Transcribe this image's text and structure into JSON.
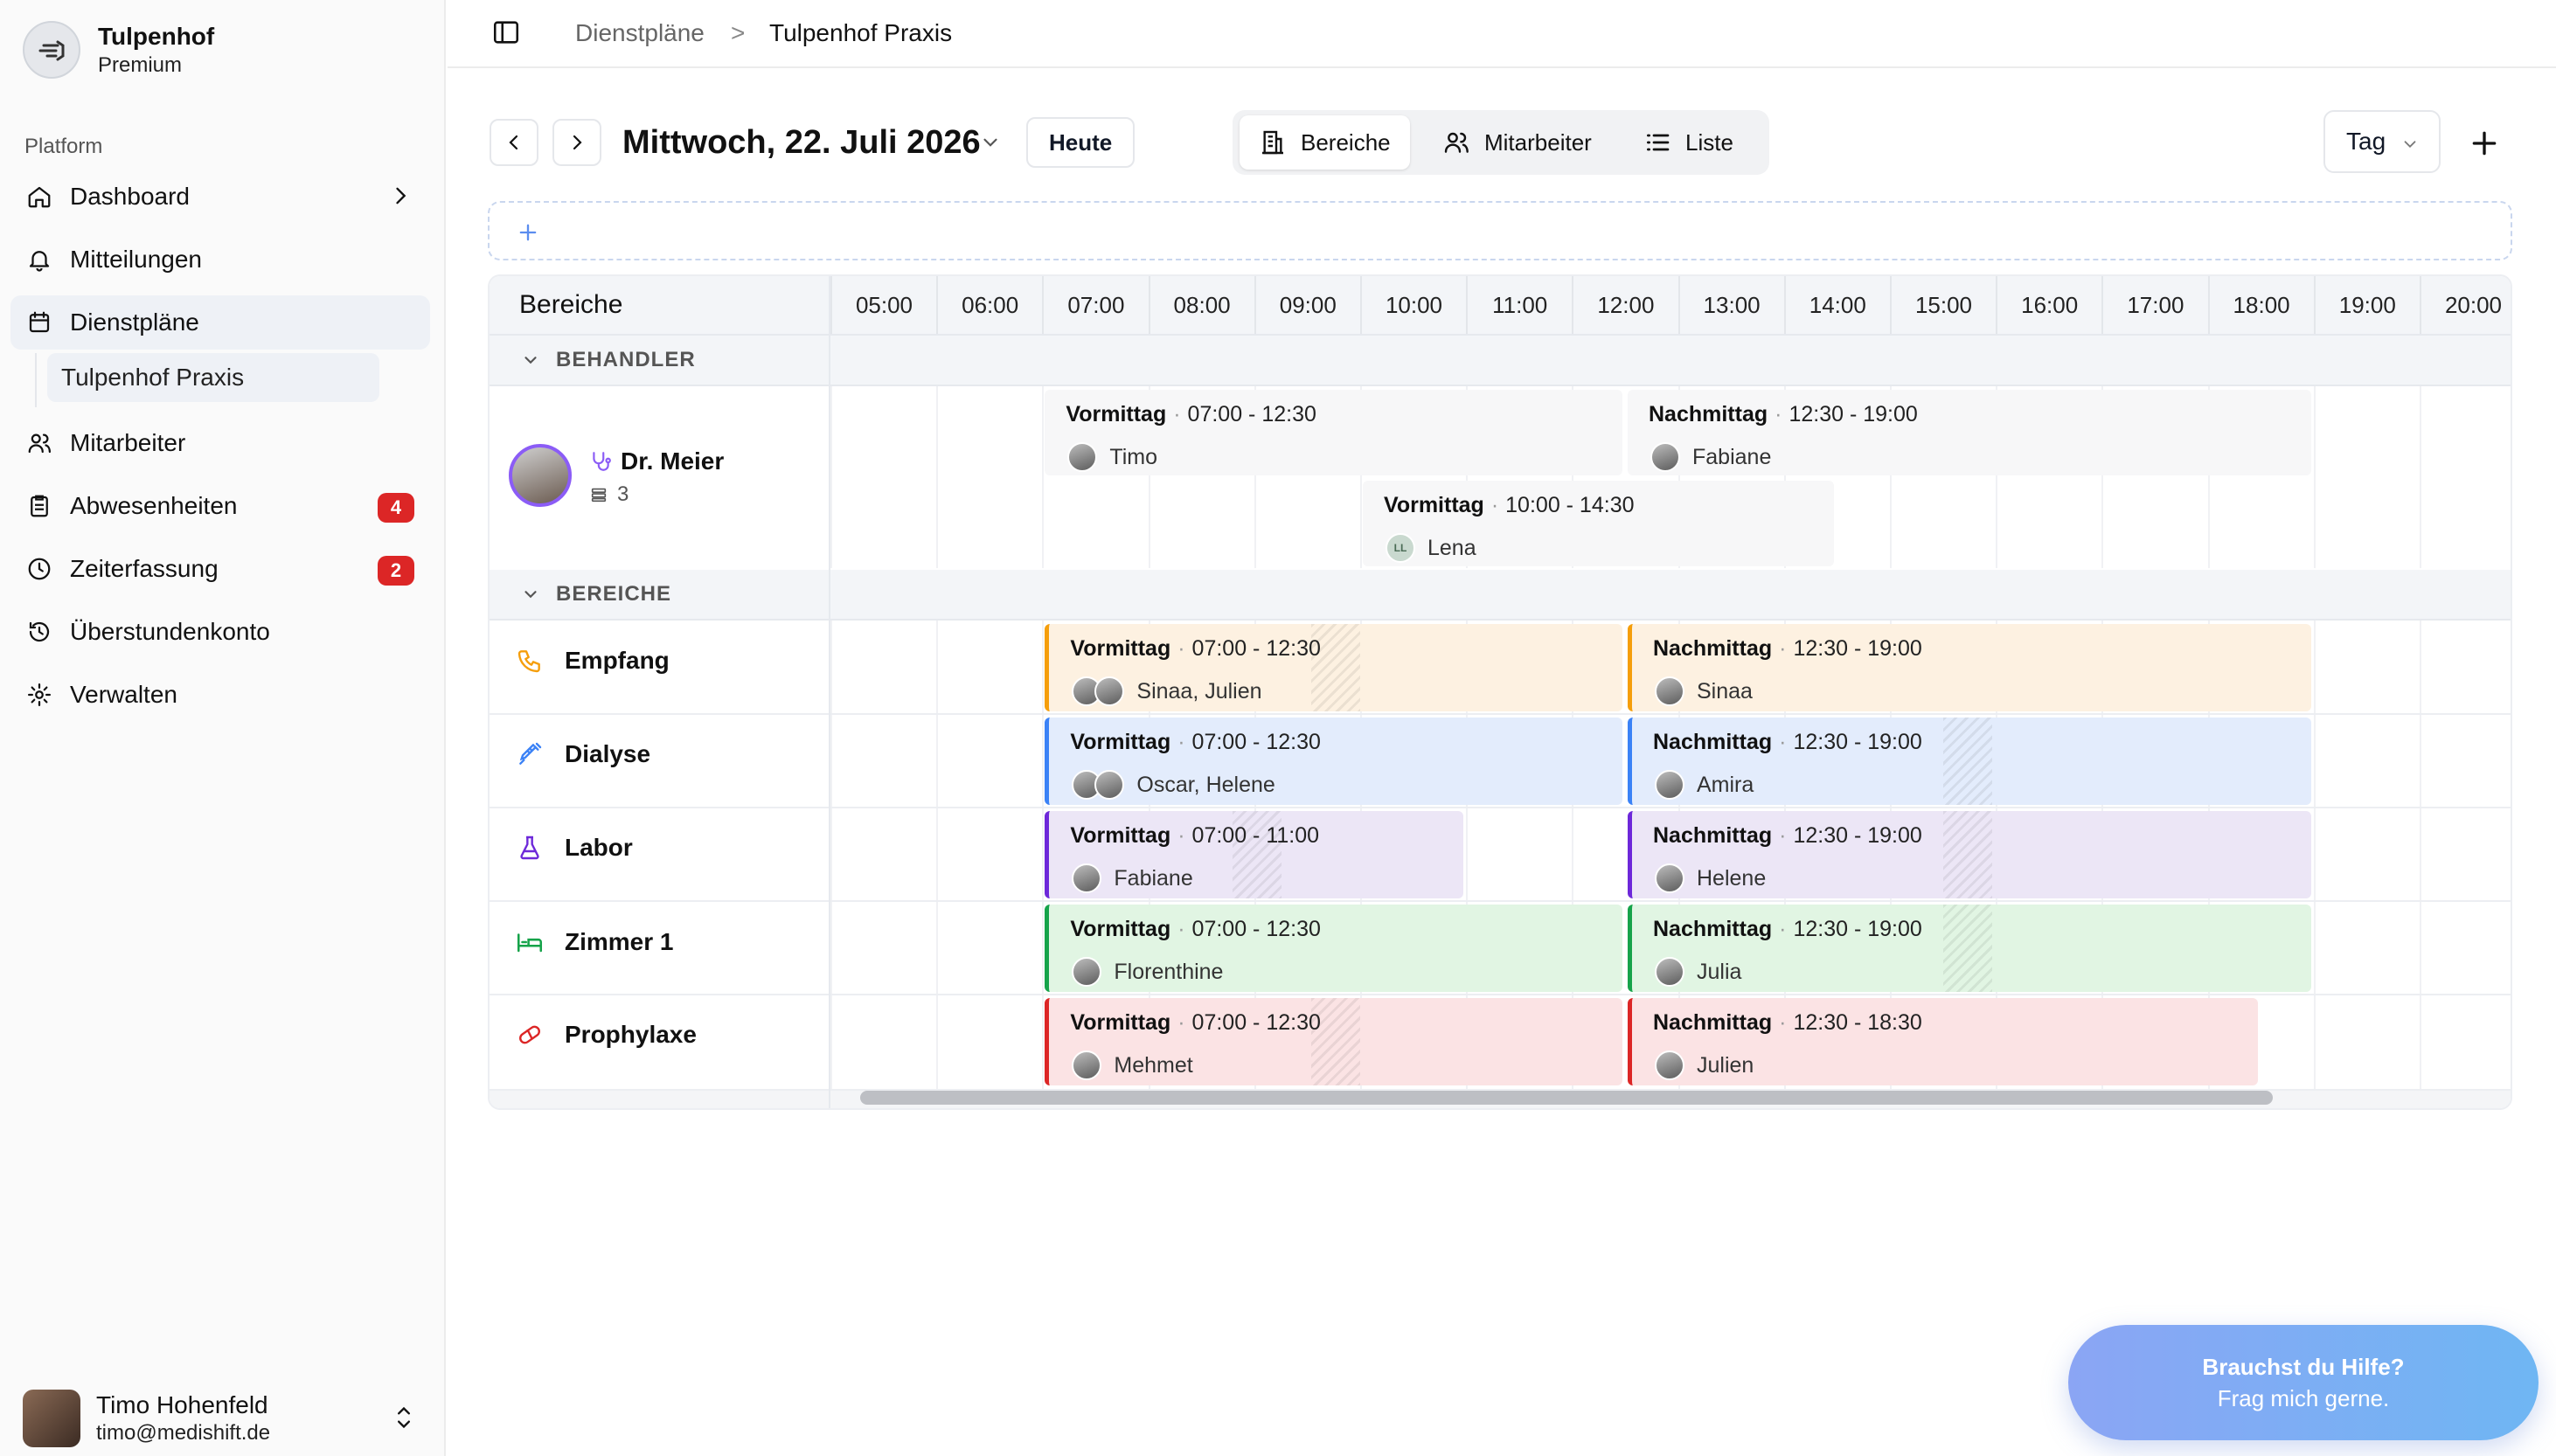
{
  "brand": {
    "name": "Tulpenhof",
    "plan": "Premium"
  },
  "sidebar": {
    "section_label": "Platform",
    "items": [
      {
        "label": "Dashboard",
        "icon": "home-icon"
      },
      {
        "label": "Mitteilungen",
        "icon": "bell-icon"
      },
      {
        "label": "Dienstpläne",
        "icon": "calendar-icon",
        "sub": "Tulpenhof Praxis"
      },
      {
        "label": "Mitarbeiter",
        "icon": "users-icon"
      },
      {
        "label": "Abwesenheiten",
        "icon": "clipboard-icon",
        "badge": "4"
      },
      {
        "label": "Zeiterfassung",
        "icon": "clock-icon",
        "badge": "2"
      },
      {
        "label": "Überstundenkonto",
        "icon": "history-icon"
      },
      {
        "label": "Verwalten",
        "icon": "gear-icon"
      }
    ]
  },
  "user": {
    "name": "Timo Hohenfeld",
    "email": "timo@medishift.de"
  },
  "breadcrumb": {
    "parent": "Dienstpläne",
    "current": "Tulpenhof Praxis",
    "separator": ">"
  },
  "toolbar": {
    "date": "Mittwoch, 22. Juli 2026",
    "today": "Heute",
    "views": [
      "Bereiche",
      "Mitarbeiter",
      "Liste"
    ],
    "active_view": "Bereiche",
    "range": "Tag"
  },
  "grid": {
    "header_label": "Bereiche",
    "hours": [
      "05:00",
      "06:00",
      "07:00",
      "08:00",
      "09:00",
      "10:00",
      "11:00",
      "12:00",
      "13:00",
      "14:00",
      "15:00",
      "16:00",
      "17:00",
      "18:00",
      "19:00",
      "20:00"
    ],
    "groups": {
      "behandler": "BEHANDLER",
      "bereiche": "BEREICHE"
    },
    "doctor": {
      "name": "Dr. Meier",
      "count": "3"
    },
    "areas": [
      "Empfang",
      "Dialyse",
      "Labor",
      "Zimmer 1",
      "Prophylaxe"
    ],
    "doctor_shifts": [
      {
        "name": "Vormittag",
        "time": "07:00 - 12:30",
        "staff": "Timo"
      },
      {
        "name": "Nachmittag",
        "time": "12:30 - 19:00",
        "staff": "Fabiane"
      },
      {
        "name": "Vormittag",
        "time": "10:00 - 14:30",
        "staff": "Lena",
        "initials": "LL"
      }
    ],
    "area_shifts": [
      {
        "name": "Vormittag",
        "time": "07:00 - 12:30",
        "staff": "Sinaa, Julien"
      },
      {
        "name": "Nachmittag",
        "time": "12:30 - 19:00",
        "staff": "Sinaa"
      },
      {
        "name": "Vormittag",
        "time": "07:00 - 12:30",
        "staff": "Oscar, Helene"
      },
      {
        "name": "Nachmittag",
        "time": "12:30 - 19:00",
        "staff": "Amira"
      },
      {
        "name": "Vormittag",
        "time": "07:00 - 11:00",
        "staff": "Fabiane"
      },
      {
        "name": "Nachmittag",
        "time": "12:30 - 19:00",
        "staff": "Helene"
      },
      {
        "name": "Vormittag",
        "time": "07:00 - 12:30",
        "staff": "Florenthine"
      },
      {
        "name": "Nachmittag",
        "time": "12:30 - 19:00",
        "staff": "Julia"
      },
      {
        "name": "Vormittag",
        "time": "07:00 - 12:30",
        "staff": "Mehmet"
      },
      {
        "name": "Nachmittag",
        "time": "12:30 - 18:30",
        "staff": "Julien"
      }
    ]
  },
  "colors": {
    "empfang": "#f59e0b",
    "dialyse": "#3b82f6",
    "labor": "#6d28d9",
    "zimmer": "#16a34a",
    "prophylaxe": "#dc2626",
    "badge": "#dc2626"
  },
  "help": {
    "title": "Brauchst du Hilfe?",
    "subtitle": "Frag mich gerne."
  }
}
